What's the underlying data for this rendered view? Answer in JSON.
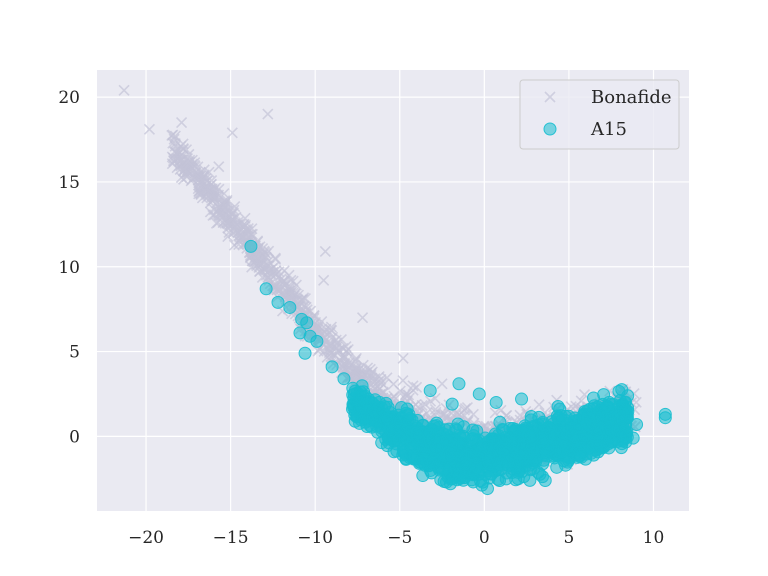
{
  "chart_data": {
    "type": "scatter",
    "title": "",
    "xlabel": "",
    "ylabel": "",
    "xlim": [
      -22.9,
      12.1
    ],
    "ylim": [
      -4.4,
      21.6
    ],
    "xticks": [
      -20,
      -15,
      -10,
      -5,
      0,
      5,
      10
    ],
    "yticks": [
      0,
      5,
      10,
      15,
      20
    ],
    "xtick_labels": [
      "−20",
      "−15",
      "−10",
      "−5",
      "0",
      "5",
      "10"
    ],
    "ytick_labels": [
      "0",
      "5",
      "10",
      "15",
      "20"
    ],
    "grid": true,
    "background": "#eaeaf2",
    "legend": {
      "placement": "top-right"
    },
    "series": [
      {
        "name": "Bonafide",
        "marker": "x",
        "color": "#c3c3d7",
        "trend": [
          [
            -21,
            20.0
          ],
          [
            -18,
            16.5
          ],
          [
            -16,
            14.0
          ],
          [
            -14,
            11.5
          ],
          [
            -12,
            8.8
          ],
          [
            -10,
            6.3
          ],
          [
            -8,
            4.0
          ],
          [
            -6,
            2.2
          ],
          [
            -4,
            0.8
          ],
          [
            -2,
            0.0
          ],
          [
            0,
            -0.3
          ],
          [
            2,
            -0.2
          ],
          [
            4,
            0.2
          ],
          [
            6,
            0.7
          ],
          [
            8,
            1.2
          ],
          [
            10,
            1.6
          ]
        ],
        "points": [
          [
            -21.3,
            20.4
          ],
          [
            -19.8,
            18.1
          ],
          [
            -17.9,
            18.5
          ],
          [
            -14.9,
            17.9
          ],
          [
            -12.8,
            19.0
          ],
          [
            -15.7,
            15.9
          ],
          [
            -9.4,
            10.9
          ],
          [
            -9.5,
            9.2
          ],
          [
            -7.2,
            7.0
          ],
          [
            -4.8,
            4.6
          ],
          [
            -2.5,
            3.1
          ],
          [
            -1.0,
            1.7
          ]
        ]
      },
      {
        "name": "A15",
        "marker": "o",
        "color": "#17becf",
        "trend": [
          [
            -10,
            5.2
          ],
          [
            -8,
            2.2
          ],
          [
            -6,
            0.8
          ],
          [
            -4,
            -0.4
          ],
          [
            -2,
            -1.2
          ],
          [
            0,
            -1.3
          ],
          [
            2,
            -0.8
          ],
          [
            4,
            -0.3
          ],
          [
            6,
            0.3
          ],
          [
            8,
            0.9
          ],
          [
            10,
            1.3
          ]
        ],
        "points": [
          [
            -13.8,
            11.2
          ],
          [
            -12.9,
            8.7
          ],
          [
            -12.2,
            7.9
          ],
          [
            -11.5,
            7.6
          ],
          [
            -10.8,
            6.9
          ],
          [
            -10.5,
            6.7
          ],
          [
            -9.9,
            5.6
          ],
          [
            -10.9,
            6.1
          ],
          [
            -10.3,
            5.9
          ],
          [
            -10.6,
            4.9
          ],
          [
            -9.0,
            4.1
          ],
          [
            -8.3,
            3.4
          ],
          [
            10.7,
            1.3
          ],
          [
            10.7,
            1.1
          ],
          [
            9.0,
            0.7
          ],
          [
            8.8,
            -0.1
          ],
          [
            8.3,
            2.0
          ],
          [
            7.3,
            1.7
          ],
          [
            6.8,
            0.5
          ],
          [
            6.2,
            -0.7
          ],
          [
            5.6,
            -1.0
          ],
          [
            4.8,
            -1.7
          ],
          [
            0.9,
            -2.6
          ],
          [
            -0.1,
            -2.7
          ],
          [
            2.0,
            -2.5
          ],
          [
            3.6,
            -2.6
          ],
          [
            -1.5,
            3.1
          ],
          [
            -0.3,
            2.5
          ],
          [
            0.7,
            2.0
          ],
          [
            2.2,
            2.2
          ],
          [
            -1.9,
            1.9
          ],
          [
            -3.2,
            2.7
          ]
        ]
      }
    ]
  }
}
